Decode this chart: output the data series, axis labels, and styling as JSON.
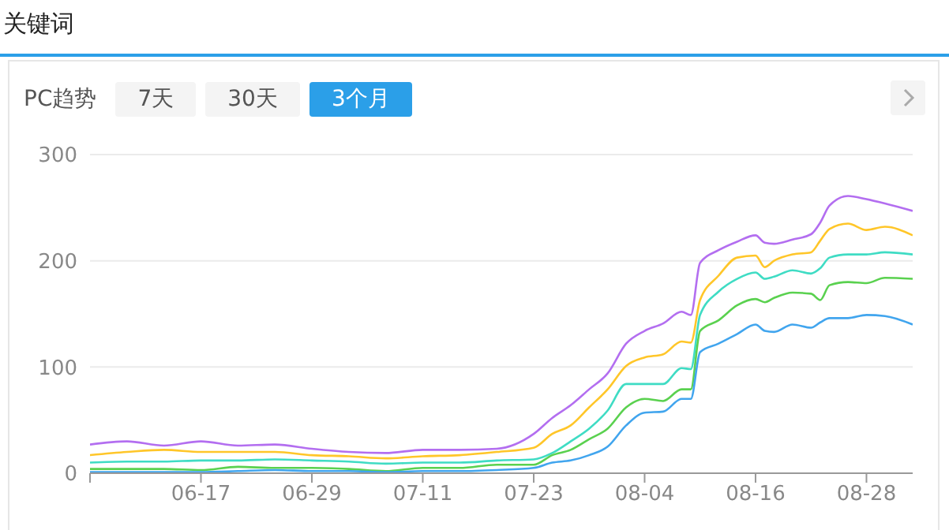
{
  "chart_data": {
    "type": "line",
    "title": "关键词",
    "annotations": [
      "PC趋势",
      "7天",
      "30天",
      "3个月"
    ],
    "x": [
      "--06-05",
      "--06-09",
      "--06-13",
      "--06-17",
      "--06-21",
      "--06-25",
      "--06-29",
      "--07-03",
      "--07-07",
      "--07-11",
      "--07-15",
      "--07-19",
      "--07-23",
      "--07-25",
      "--07-27",
      "--07-29",
      "--07-31",
      "--08-02",
      "--08-04",
      "--08-06",
      "--08-08",
      "--08-09",
      "--08-10",
      "--08-12",
      "--08-14",
      "--08-16",
      "--08-17",
      "--08-18",
      "--08-20",
      "--08-22",
      "--08-23",
      "--08-24",
      "--08-26",
      "--08-28",
      "--08-30",
      "--09-02"
    ],
    "series": [
      {
        "color": "#b36ef0",
        "values": [
          27,
          30,
          26,
          30,
          26,
          27,
          23,
          20,
          19,
          22,
          22,
          23,
          37,
          52,
          64,
          79,
          94,
          122,
          134,
          141,
          152,
          149,
          198,
          210,
          218,
          224,
          217,
          216,
          220,
          225,
          236,
          252,
          261,
          258,
          254,
          247
        ]
      },
      {
        "color": "#ffc629",
        "values": [
          17,
          20,
          22,
          20,
          20,
          20,
          17,
          16,
          14,
          16,
          17,
          20,
          24,
          37,
          45,
          62,
          79,
          101,
          109,
          112,
          124,
          123,
          163,
          186,
          203,
          205,
          194,
          200,
          206,
          208,
          219,
          230,
          235,
          229,
          232,
          224
        ]
      },
      {
        "color": "#3fdcc4",
        "values": [
          10,
          11,
          11,
          12,
          12,
          13,
          12,
          11,
          9,
          10,
          10,
          12,
          13,
          19,
          30,
          42,
          59,
          84,
          84,
          84,
          99,
          98,
          149,
          171,
          183,
          189,
          183,
          185,
          191,
          188,
          193,
          203,
          206,
          206,
          208,
          206
        ]
      },
      {
        "color": "#5ad14f",
        "values": [
          4,
          4,
          4,
          3,
          6,
          5,
          5,
          4,
          2,
          5,
          5,
          8,
          8,
          17,
          22,
          32,
          42,
          62,
          70,
          68,
          79,
          79,
          134,
          144,
          158,
          164,
          161,
          165,
          170,
          169,
          163,
          177,
          180,
          179,
          184,
          183
        ]
      },
      {
        "color": "#41a5ee",
        "values": [
          1,
          1,
          1,
          1,
          2,
          3,
          2,
          2,
          1,
          2,
          2,
          3,
          5,
          10,
          12,
          17,
          25,
          45,
          57,
          58,
          70,
          70,
          114,
          122,
          131,
          140,
          134,
          133,
          140,
          137,
          142,
          146,
          146,
          149,
          148,
          140
        ]
      }
    ],
    "xlim": [
      "--06-05",
      "--09-02"
    ],
    "xticks": [
      {
        "value": "--06-05",
        "label": null
      },
      {
        "value": "--06-17",
        "label": "06-17"
      },
      {
        "value": "--06-29",
        "label": "06-29"
      },
      {
        "value": "--07-11",
        "label": "07-11"
      },
      {
        "value": "--07-23",
        "label": "07-23"
      },
      {
        "value": "--08-04",
        "label": "08-04"
      },
      {
        "value": "--08-16",
        "label": "08-16"
      },
      {
        "value": "--08-28",
        "label": "08-28"
      }
    ],
    "ylim": [
      0,
      300
    ],
    "yticks": [
      0,
      100,
      200,
      300
    ],
    "grid": "y",
    "marker": "none",
    "line_style": "solid",
    "legend": false
  }
}
